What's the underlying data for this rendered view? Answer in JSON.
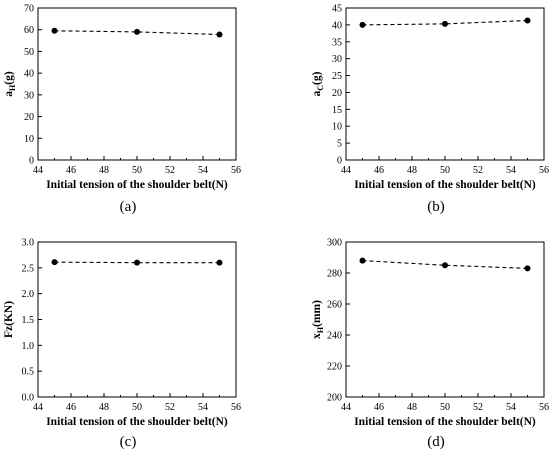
{
  "chart_data": [
    {
      "panel": "(a)",
      "type": "line",
      "xlabel": "Initial tension of the shoulder belt(N)",
      "ylabel": "aH(g)",
      "ylabel_main": "a",
      "ylabel_sub": "H",
      "ylabel_suffix": "(g)",
      "xlim": [
        44,
        56
      ],
      "ylim": [
        0,
        70
      ],
      "xticks": [
        44,
        46,
        48,
        50,
        52,
        54,
        56
      ],
      "yticks": [
        0,
        10,
        20,
        30,
        40,
        50,
        60,
        70
      ],
      "ytick_labels": [
        "0",
        "10",
        "20",
        "30",
        "40",
        "50",
        "60",
        "70"
      ],
      "grid": false,
      "series": [
        {
          "x": [
            45,
            50,
            55
          ],
          "y": [
            59.5,
            59.0,
            57.8
          ]
        }
      ]
    },
    {
      "panel": "(b)",
      "type": "line",
      "xlabel": "Initial tension of the shoulder belt(N)",
      "ylabel": "aC(g)",
      "ylabel_main": "a",
      "ylabel_sub": "C",
      "ylabel_suffix": "(g)",
      "xlim": [
        44,
        56
      ],
      "ylim": [
        0,
        45
      ],
      "xticks": [
        44,
        46,
        48,
        50,
        52,
        54,
        56
      ],
      "yticks": [
        0,
        5,
        10,
        15,
        20,
        25,
        30,
        35,
        40,
        45
      ],
      "ytick_labels": [
        "0",
        "5",
        "10",
        "15",
        "20",
        "25",
        "30",
        "35",
        "40",
        "45"
      ],
      "grid": false,
      "series": [
        {
          "x": [
            45,
            50,
            55
          ],
          "y": [
            40.0,
            40.3,
            41.3
          ]
        }
      ]
    },
    {
      "panel": "(c)",
      "type": "line",
      "xlabel": "Initial tension of the shoulder belt(N)",
      "ylabel": "Fz(KN)",
      "ylabel_main": "Fz(KN)",
      "ylabel_sub": "",
      "ylabel_suffix": "",
      "xlim": [
        44,
        56
      ],
      "ylim": [
        0,
        3
      ],
      "xticks": [
        44,
        46,
        48,
        50,
        52,
        54,
        56
      ],
      "yticks": [
        0,
        0.5,
        1,
        1.5,
        2,
        2.5,
        3
      ],
      "ytick_labels": [
        "0.0",
        "0.5",
        "1.0",
        "1.5",
        "2.0",
        "2.5",
        "3.0"
      ],
      "grid": false,
      "series": [
        {
          "x": [
            45,
            50,
            55
          ],
          "y": [
            2.61,
            2.6,
            2.6
          ]
        }
      ]
    },
    {
      "panel": "(d)",
      "type": "line",
      "xlabel": "Initial tension of the shoulder belt(N)",
      "ylabel": "xH(mm)",
      "ylabel_main": "x",
      "ylabel_sub": "H",
      "ylabel_suffix": "(mm)",
      "xlim": [
        44,
        56
      ],
      "ylim": [
        200,
        300
      ],
      "xticks": [
        44,
        46,
        48,
        50,
        52,
        54,
        56
      ],
      "yticks": [
        200,
        220,
        240,
        260,
        280,
        300
      ],
      "ytick_labels": [
        "200",
        "220",
        "240",
        "260",
        "280",
        "300"
      ],
      "grid": false,
      "series": [
        {
          "x": [
            45,
            50,
            55
          ],
          "y": [
            288.0,
            285.0,
            283.0
          ]
        }
      ]
    }
  ]
}
